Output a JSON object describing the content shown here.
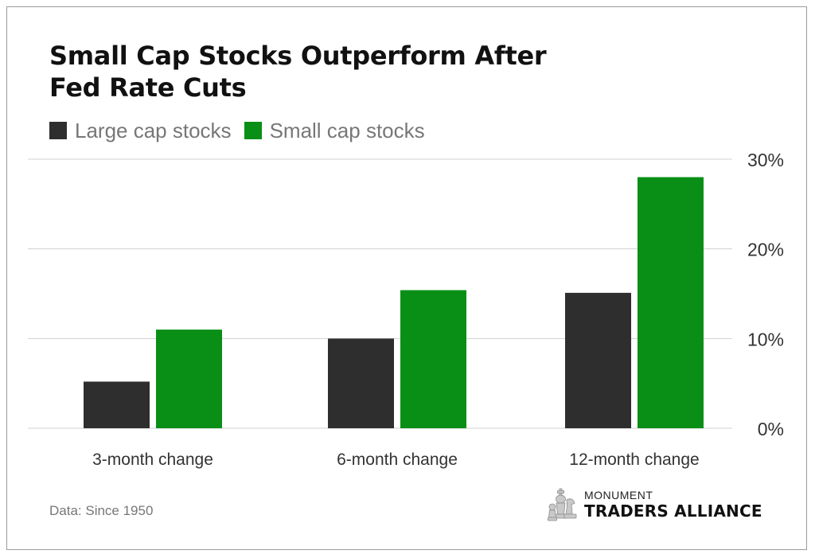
{
  "colors": {
    "large": "#2e2e2e",
    "small": "#0a8f16",
    "grid": "#d0d0d0",
    "axis_text": "#333333",
    "muted": "#777777"
  },
  "source_note": "Data: Since 1950",
  "logo": {
    "top_text": "MONUMENT",
    "main_text": "TRADERS ALLIANCE",
    "icon": "chess-pieces-icon"
  },
  "chart_data": {
    "type": "bar",
    "title": "Small Cap Stocks Outperform After Fed Rate Cuts",
    "title_lines": [
      "Small Cap Stocks Outperform After",
      "Fed Rate Cuts"
    ],
    "categories": [
      "3-month change",
      "6-month change",
      "12-month change"
    ],
    "series": [
      {
        "name": "Large cap stocks",
        "values": [
          5.2,
          10.0,
          15.1
        ],
        "color": "#2e2e2e"
      },
      {
        "name": "Small cap stocks",
        "values": [
          11.0,
          15.4,
          28.0
        ],
        "color": "#0a8f16"
      }
    ],
    "ylim": [
      0,
      30
    ],
    "yticks": [
      0,
      10,
      20,
      30
    ],
    "ytick_labels": [
      "0%",
      "10%",
      "20%",
      "30%"
    ],
    "y_axis_side": "right",
    "grid": true,
    "legend": "top-left"
  }
}
